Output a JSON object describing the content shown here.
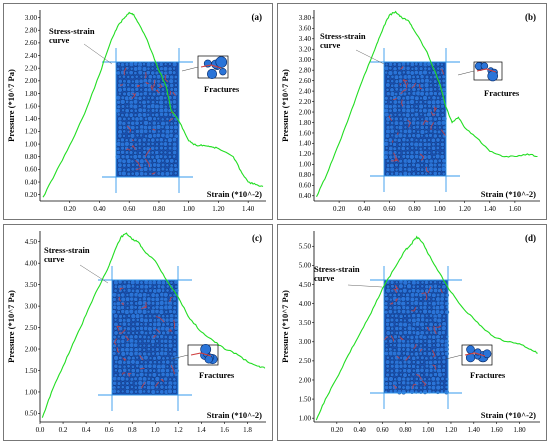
{
  "colors": {
    "curve": "#22dd22",
    "grain": "#2a74d8",
    "grain_edge": "#0a2a66",
    "crack": "#d04040",
    "guide": "#3399ee"
  },
  "chart_data": [
    {
      "type": "line",
      "panel_label": "(a)",
      "ylabel": "Pressure (*10^7 Pa)",
      "xlabel": "Strain (*10^-2)",
      "annotation_curve": [
        "Stress-strain",
        "curve"
      ],
      "annotation_fractures": "Fractures",
      "xlim": [
        0.0,
        1.52
      ],
      "ylim": [
        0.1,
        3.12
      ],
      "xticks": [
        "0.20",
        "0.40",
        "0.60",
        "0.80",
        "1.00",
        "1.20",
        "1.40"
      ],
      "xtick_values": [
        0.2,
        0.4,
        0.6,
        0.8,
        1.0,
        1.2,
        1.4
      ],
      "yticks": [
        "0.20",
        "0.40",
        "0.60",
        "0.80",
        "1.00",
        "1.20",
        "1.40",
        "1.60",
        "1.80",
        "2.00",
        "2.20",
        "2.40",
        "2.60",
        "2.80",
        "3.00"
      ],
      "ytick_values": [
        0.2,
        0.4,
        0.6,
        0.8,
        1.0,
        1.2,
        1.4,
        1.6,
        1.8,
        2.0,
        2.2,
        2.4,
        2.6,
        2.8,
        3.0
      ],
      "x": [
        0.02,
        0.1,
        0.2,
        0.3,
        0.4,
        0.48,
        0.52,
        0.56,
        0.6,
        0.63,
        0.66,
        0.72,
        0.78,
        0.85,
        0.88,
        0.95,
        1.0,
        1.05,
        1.1,
        1.15,
        1.2,
        1.3,
        1.35,
        1.4,
        1.45,
        1.5
      ],
      "y": [
        0.16,
        0.52,
        0.98,
        1.48,
        2.1,
        2.65,
        2.85,
        2.98,
        3.08,
        3.05,
        2.92,
        2.65,
        2.28,
        1.9,
        1.55,
        1.3,
        1.05,
        0.98,
        0.98,
        0.96,
        0.93,
        0.8,
        0.58,
        0.4,
        0.36,
        0.33
      ]
    },
    {
      "type": "line",
      "panel_label": "(b)",
      "ylabel": "Pressure (*10^7 Pa)",
      "xlabel": "Strain (*10^-2)",
      "annotation_curve": [
        "Stress-strain",
        "curve"
      ],
      "annotation_fractures": "Fractures",
      "xlim": [
        0.0,
        1.8
      ],
      "ylim": [
        0.3,
        3.95
      ],
      "xticks": [
        "0.20",
        "0.40",
        "0.60",
        "0.80",
        "1.00",
        "1.20",
        "1.40",
        "1.60"
      ],
      "xtick_values": [
        0.2,
        0.4,
        0.6,
        0.8,
        1.0,
        1.2,
        1.4,
        1.6
      ],
      "yticks": [
        "0.40",
        "0.60",
        "0.80",
        "1.00",
        "1.20",
        "1.40",
        "1.60",
        "1.80",
        "2.00",
        "2.20",
        "2.40",
        "2.60",
        "2.80",
        "3.00",
        "3.20",
        "3.40",
        "3.60",
        "3.80"
      ],
      "ytick_values": [
        0.4,
        0.6,
        0.8,
        1.0,
        1.2,
        1.4,
        1.6,
        1.8,
        2.0,
        2.2,
        2.4,
        2.6,
        2.8,
        3.0,
        3.2,
        3.4,
        3.6,
        3.8
      ],
      "x": [
        0.02,
        0.1,
        0.2,
        0.3,
        0.4,
        0.5,
        0.55,
        0.6,
        0.65,
        0.7,
        0.75,
        0.8,
        0.9,
        1.0,
        1.05,
        1.1,
        1.15,
        1.2,
        1.3,
        1.4,
        1.5,
        1.6,
        1.7,
        1.78
      ],
      "y": [
        0.38,
        0.8,
        1.4,
        2.05,
        2.7,
        3.3,
        3.6,
        3.85,
        3.92,
        3.8,
        3.75,
        3.55,
        3.15,
        2.55,
        2.1,
        1.8,
        1.9,
        1.7,
        1.5,
        1.25,
        1.15,
        1.15,
        1.2,
        1.15
      ]
    },
    {
      "type": "line",
      "panel_label": "(c)",
      "ylabel": "Pressure (*10^7 Pa)",
      "xlabel": "Strain (*10^-2)",
      "annotation_curve": [
        "Stress-strain",
        "curve"
      ],
      "annotation_fractures": "Fractures",
      "xlim": [
        0.0,
        1.96
      ],
      "ylim": [
        0.3,
        4.75
      ],
      "xticks": [
        "0.0",
        "0.2",
        "0.4",
        "0.6",
        "0.8",
        "1.0",
        "1.2",
        "1.4",
        "1.6",
        "1.8"
      ],
      "xtick_values": [
        0.0,
        0.2,
        0.4,
        0.6,
        0.8,
        1.0,
        1.2,
        1.4,
        1.6,
        1.8
      ],
      "yticks": [
        "0.50",
        "1.00",
        "1.50",
        "2.00",
        "2.50",
        "3.00",
        "3.50",
        "4.00",
        "4.50"
      ],
      "ytick_values": [
        0.5,
        1.0,
        1.5,
        2.0,
        2.5,
        3.0,
        3.5,
        4.0,
        4.5
      ],
      "x": [
        0.02,
        0.1,
        0.2,
        0.3,
        0.4,
        0.5,
        0.6,
        0.65,
        0.7,
        0.75,
        0.8,
        0.85,
        0.9,
        1.0,
        1.1,
        1.2,
        1.3,
        1.4,
        1.5,
        1.6,
        1.7,
        1.8,
        1.9,
        1.95
      ],
      "y": [
        0.4,
        1.0,
        1.6,
        2.2,
        2.8,
        3.4,
        3.95,
        4.3,
        4.6,
        4.7,
        4.55,
        4.5,
        4.3,
        4.05,
        3.6,
        3.2,
        2.7,
        2.4,
        2.2,
        2.0,
        1.9,
        1.7,
        1.6,
        1.55
      ]
    },
    {
      "type": "line",
      "panel_label": "(d)",
      "ylabel": "Pressure (*10^7 Pa)",
      "xlabel": "Strain (*10^-2)",
      "annotation_curve": [
        "Stress-strain",
        "curve"
      ],
      "annotation_fractures": "Fractures",
      "xlim": [
        0.0,
        1.98
      ],
      "ylim": [
        0.9,
        5.9
      ],
      "xticks": [
        "0.20",
        "0.40",
        "0.60",
        "0.80",
        "1.00",
        "1.20",
        "1.40",
        "1.60",
        "1.80"
      ],
      "xtick_values": [
        0.2,
        0.4,
        0.6,
        0.8,
        1.0,
        1.2,
        1.4,
        1.6,
        1.8
      ],
      "yticks": [
        "1.00",
        "1.50",
        "2.00",
        "2.50",
        "3.00",
        "3.50",
        "4.00",
        "4.50",
        "5.00",
        "5.50"
      ],
      "ytick_values": [
        1.0,
        1.5,
        2.0,
        2.5,
        3.0,
        3.5,
        4.0,
        4.5,
        5.0,
        5.5
      ],
      "x": [
        0.02,
        0.1,
        0.2,
        0.3,
        0.4,
        0.5,
        0.6,
        0.7,
        0.8,
        0.85,
        0.9,
        0.95,
        1.0,
        1.1,
        1.2,
        1.3,
        1.4,
        1.5,
        1.6,
        1.7,
        1.8,
        1.9,
        1.96
      ],
      "y": [
        0.95,
        1.5,
        2.05,
        2.65,
        3.2,
        3.75,
        4.4,
        4.9,
        5.4,
        5.55,
        5.75,
        5.6,
        5.3,
        4.8,
        4.3,
        3.9,
        3.6,
        3.3,
        3.1,
        3.0,
        2.95,
        2.8,
        2.7
      ]
    }
  ]
}
